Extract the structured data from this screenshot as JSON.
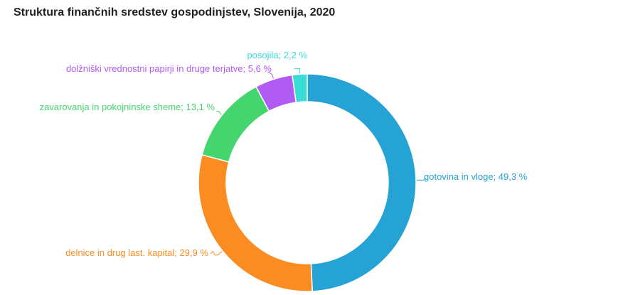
{
  "chart_data": {
    "type": "pie",
    "title": "Struktura finančnih sredstev gospodinjstev, Slovenija, 2020",
    "donut": true,
    "slices": [
      {
        "label": "gotovina in vloge; 49,3 %",
        "value": 49.3,
        "color": "#26a3d5"
      },
      {
        "label": "delnice in drug last. kapital; 29,9 %",
        "value": 29.9,
        "color": "#fb8c22"
      },
      {
        "label": "zavarovanja in pokojninske sheme; 13,1 %",
        "value": 13.1,
        "color": "#45d56f"
      },
      {
        "label": "dolžniški vrednostni papirji in druge terjatve; 5,6 %",
        "value": 5.6,
        "color": "#b25af4"
      },
      {
        "label": "posojila; 2,2 %",
        "value": 2.2,
        "color": "#39ddd6"
      }
    ]
  }
}
